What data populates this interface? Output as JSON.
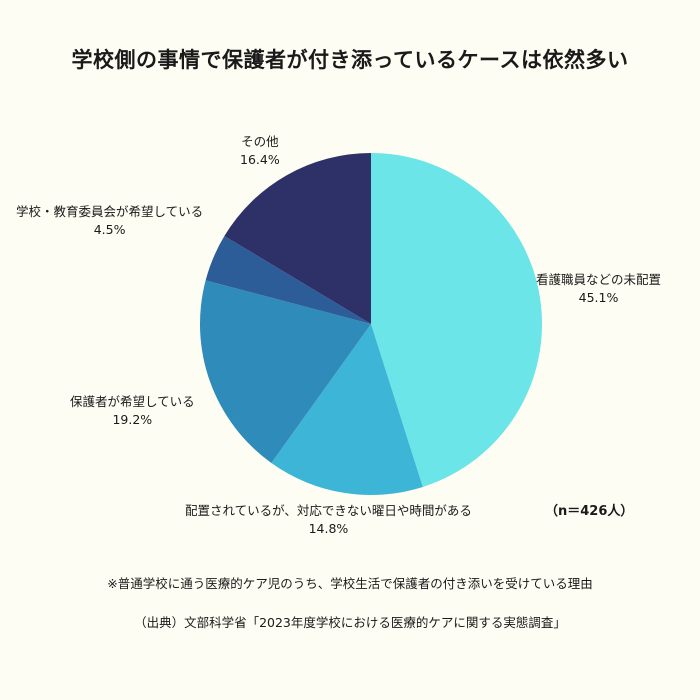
{
  "title": "学校側の事情で保護者が付き添っているケースは依然多い",
  "chart_data": {
    "type": "pie",
    "categories": [
      "看護職員などの未配置",
      "配置されているが、対応できない曜日や時間がある",
      "保護者が希望している",
      "学校・教育委員会が希望している",
      "その他"
    ],
    "values": [
      45.1,
      14.8,
      19.2,
      4.5,
      16.4
    ],
    "value_labels": [
      "45.1%",
      "14.8%",
      "19.2%",
      "4.5%",
      "16.4%"
    ],
    "colors": [
      "#6ce5e8",
      "#3db5d6",
      "#2e8bba",
      "#2d5d99",
      "#2e3168"
    ],
    "start": "12 o'clock",
    "direction": "clockwise"
  },
  "sample_size": "（n＝426人）",
  "note": "※普通学校に通う医療的ケア児のうち、学校生活で保護者の付き添いを受けている理由",
  "source": "（出典）文部科学省「2023年度学校における医療的ケアに関する実態調査」"
}
